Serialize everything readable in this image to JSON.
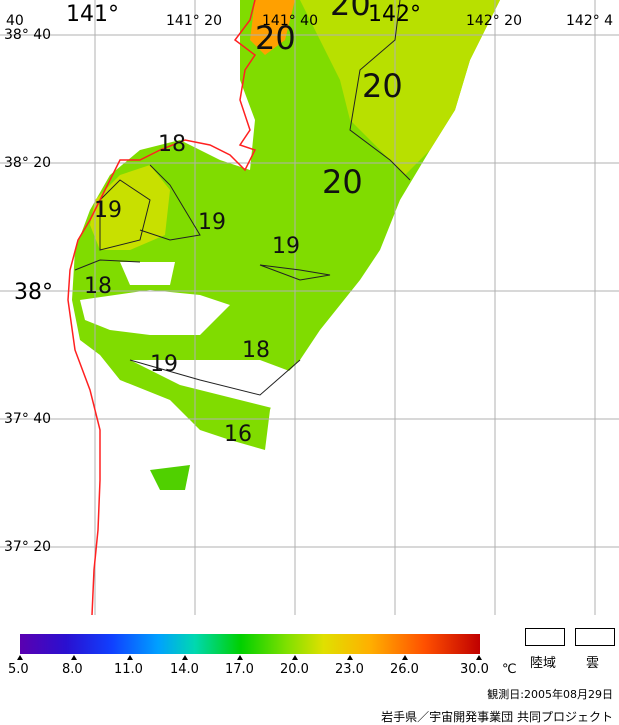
{
  "map": {
    "lat_labels": [
      "38° 40",
      "38° 20",
      "38°",
      "37° 40",
      "37° 20"
    ],
    "lon_labels": [
      "141°",
      "141° 20",
      "141° 40",
      "142°",
      "142° 20",
      "142° 4"
    ],
    "corner_label": "40",
    "contour_labels": [
      "20",
      "20",
      "20",
      "20",
      "18",
      "19",
      "19",
      "19",
      "18",
      "18",
      "19",
      "16"
    ],
    "colors": {
      "coastline": "#ff2020",
      "grid": "#b0b0b0",
      "water_warm": "#b8e000",
      "water_mid": "#80dc00",
      "water_cool": "#50d000",
      "hot": "#ffa000"
    }
  },
  "legend": {
    "ticks": [
      "5.0",
      "8.0",
      "11.0",
      "14.0",
      "17.0",
      "20.0",
      "23.0",
      "26.0",
      "30.0"
    ],
    "unit": "℃",
    "land_label": "陸域",
    "cloud_label": "雲"
  },
  "footer": {
    "date": "観測日:2005年08月29日",
    "credit": "岩手県／宇宙開発事業団 共同プロジェクト"
  }
}
